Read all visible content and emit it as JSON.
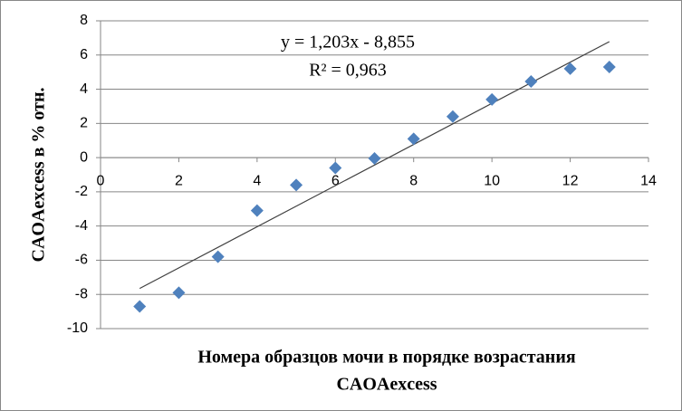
{
  "chart_data": {
    "type": "scatter",
    "x_label": [
      "Номера образцов мочи в порядке возрастания",
      "CAOAexcess"
    ],
    "y_label": "CAOAexcess в % отн.",
    "x": [
      1,
      2,
      3,
      4,
      5,
      6,
      7,
      8,
      9,
      10,
      11,
      12,
      13
    ],
    "series": [
      {
        "color": "#4f81bd",
        "values": [
          -8.7,
          -7.9,
          -5.8,
          -3.1,
          -1.6,
          -0.6,
          -0.05,
          1.1,
          2.4,
          3.4,
          4.45,
          5.2,
          5.3
        ]
      }
    ],
    "trendline": {
      "equation": "y = 1,203x - 8,855",
      "r_squared": "R² = 0,963",
      "slope": 1.203,
      "intercept": -8.855,
      "color": "#404040"
    },
    "xlim": [
      0,
      14
    ],
    "xticks": [
      0,
      2,
      4,
      6,
      8,
      10,
      12,
      14
    ],
    "ylim": [
      -10,
      8
    ],
    "yticks": [
      -10,
      -8,
      -6,
      -4,
      -2,
      0,
      2,
      4,
      6,
      8
    ],
    "grid": true
  }
}
